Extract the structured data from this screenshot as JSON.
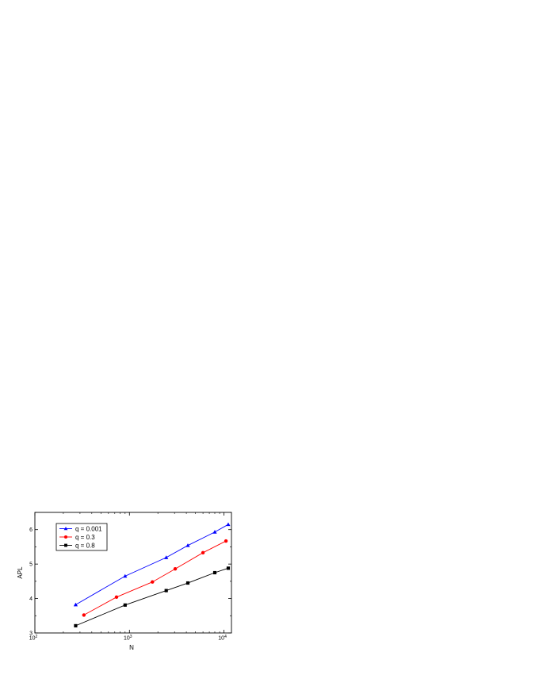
{
  "chart_data": {
    "type": "line",
    "title": "",
    "xlabel": "N",
    "ylabel": "APL",
    "xscale": "log",
    "xlim": [
      100,
      12000
    ],
    "ylim": [
      3,
      6.5
    ],
    "x_ticks": [
      {
        "value": 100,
        "base": "10",
        "exp": "2"
      },
      {
        "value": 1000,
        "base": "10",
        "exp": "3"
      },
      {
        "value": 10000,
        "base": "10",
        "exp": "4"
      }
    ],
    "y_ticks": [
      {
        "value": 3,
        "label": "3"
      },
      {
        "value": 4,
        "label": "4"
      },
      {
        "value": 5,
        "label": "5"
      },
      {
        "value": 6,
        "label": "6"
      }
    ],
    "legend_position": "top-left",
    "series": [
      {
        "name": "q = 0.001",
        "color": "#0000ff",
        "marker": "triangle",
        "x": [
          270,
          900,
          2450,
          4150,
          8000,
          11100
        ],
        "y": [
          3.82,
          4.65,
          5.19,
          5.54,
          5.93,
          6.15
        ]
      },
      {
        "name": "q = 0.3",
        "color": "#ff0000",
        "marker": "circle",
        "x": [
          330,
          730,
          1750,
          3050,
          6000,
          10500
        ],
        "y": [
          3.52,
          4.04,
          4.48,
          4.86,
          5.33,
          5.67
        ]
      },
      {
        "name": "q = 0.8",
        "color": "#000000",
        "marker": "square",
        "x": [
          270,
          900,
          2450,
          4150,
          8000,
          11100
        ],
        "y": [
          3.21,
          3.81,
          4.23,
          4.45,
          4.75,
          4.88
        ]
      }
    ]
  }
}
